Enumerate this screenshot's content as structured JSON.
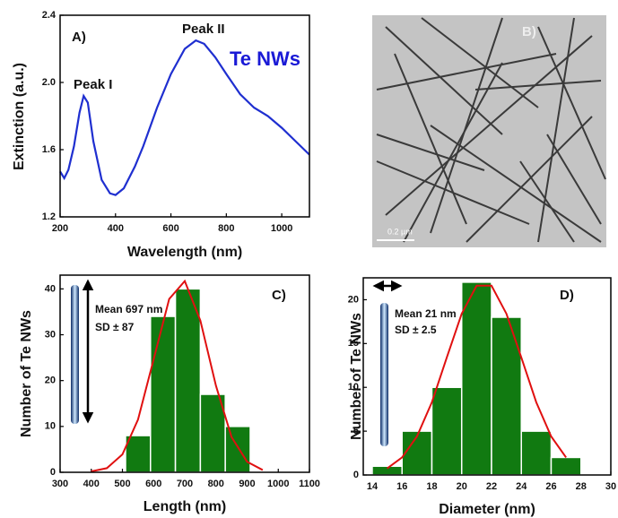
{
  "chart_data": [
    {
      "type": "line",
      "x_label": "Wavelength (nm)",
      "y_label": "Extinction (a.u.)",
      "annotations": [
        "A)",
        "Peak II",
        "Peak I",
        "Te NWs"
      ],
      "series": [
        {
          "color": "#1f2fd0",
          "x": [
            200,
            215,
            230,
            250,
            270,
            285,
            300,
            320,
            350,
            380,
            400,
            430,
            470,
            500,
            550,
            600,
            650,
            690,
            720,
            760,
            800,
            850,
            900,
            950,
            1000,
            1050,
            1100
          ],
          "values": [
            1.47,
            1.43,
            1.48,
            1.62,
            1.82,
            1.92,
            1.88,
            1.65,
            1.42,
            1.34,
            1.33,
            1.37,
            1.5,
            1.62,
            1.85,
            2.05,
            2.2,
            2.25,
            2.23,
            2.15,
            2.05,
            1.93,
            1.85,
            1.8,
            1.73,
            1.65,
            1.57
          ]
        }
      ],
      "xlim": [
        200,
        1100
      ],
      "xticks": [
        200,
        400,
        600,
        800,
        1000
      ],
      "ylim": [
        1.2,
        2.4
      ],
      "yticks": [
        1.2,
        1.6,
        {
          "value": 2,
          "label": "2.0"
        },
        2.4
      ]
    },
    {
      "type": "histogram",
      "x_label": "Length (nm)",
      "y_label": "Number of Te NWs",
      "annotations": [
        "C)",
        "Mean 697 nm",
        "SD ± 87"
      ],
      "bins": [
        510,
        590,
        670,
        750,
        830,
        910
      ],
      "values": [
        8,
        34,
        40,
        17,
        10
      ],
      "color": "#117a11",
      "fit": {
        "color": "#e01010",
        "x": [
          400,
          450,
          500,
          550,
          600,
          650,
          700,
          750,
          800,
          850,
          900,
          950
        ],
        "values": [
          0.2,
          0.9,
          3.9,
          11.5,
          24.6,
          37.8,
          41.7,
          33.1,
          18.9,
          7.7,
          2.3,
          0.5
        ]
      },
      "xlim": [
        300,
        1100
      ],
      "xticks": [
        300,
        400,
        500,
        600,
        700,
        800,
        900,
        1000,
        1100
      ],
      "ylim": [
        0,
        43
      ],
      "yticks": [
        0,
        10,
        20,
        30,
        40
      ]
    },
    {
      "type": "histogram",
      "x_label": "Diameter (nm)",
      "y_label": "Number of Te NWs",
      "annotations": [
        "D)",
        "Mean 21 nm",
        "SD ± 2.5"
      ],
      "bins": [
        14,
        16,
        18,
        20,
        22,
        24,
        26,
        28
      ],
      "values": [
        1,
        5,
        10,
        22,
        18,
        5,
        2
      ],
      "color": "#117a11",
      "fit": {
        "color": "#e01010",
        "x": [
          15,
          16,
          17,
          18,
          19,
          20,
          21,
          22,
          23,
          24,
          25,
          26,
          27
        ],
        "values": [
          0.75,
          2.0,
          4.4,
          8.3,
          13.4,
          18.4,
          21.6,
          21.6,
          18.4,
          13.4,
          8.3,
          4.4,
          2.0
        ]
      },
      "xlim": [
        13.4,
        30
      ],
      "xticks": [
        14,
        16,
        18,
        20,
        22,
        24,
        26,
        28,
        30
      ],
      "ylim": [
        0,
        22.5
      ],
      "yticks": [
        0,
        5,
        10,
        15,
        20
      ]
    }
  ],
  "image_panel": {
    "label": "B)",
    "scale_bar": "0.2 µm"
  }
}
